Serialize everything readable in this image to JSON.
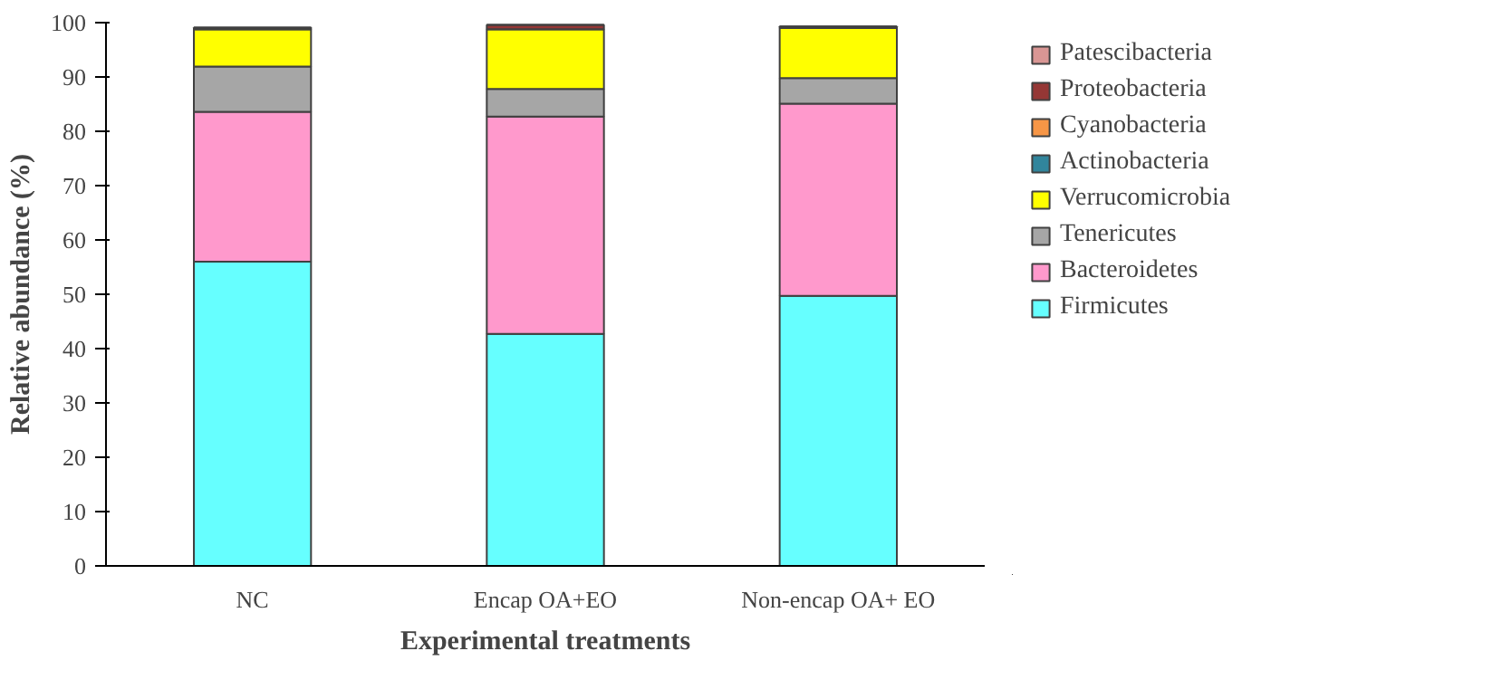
{
  "chart_data": {
    "type": "bar",
    "stacked": true,
    "xlabel": "Experimental treatments",
    "ylabel": "Relative abundance (%)",
    "categories": [
      "NC",
      "Encap OA+EO",
      "Non-encap OA+ EO"
    ],
    "ylim": [
      0,
      100
    ],
    "yticks": [
      0,
      10,
      20,
      30,
      40,
      50,
      60,
      70,
      80,
      90,
      100
    ],
    "grid": false,
    "legend": "right",
    "series": [
      {
        "name": "Firmicutes",
        "color": "#66ffff",
        "values": [
          56,
          42.7,
          49.7
        ]
      },
      {
        "name": "Bacteroidetes",
        "color": "#ff99cc",
        "values": [
          27.6,
          40,
          35.4
        ]
      },
      {
        "name": "Tenericutes",
        "color": "#a6a6a6",
        "values": [
          8.3,
          5.1,
          4.7
        ]
      },
      {
        "name": "Verrucomicrobia",
        "color": "#ffff00",
        "values": [
          6.9,
          11,
          9.2
        ]
      },
      {
        "name": "Actinobacteria",
        "color": "#31859c",
        "values": [
          null,
          null,
          null
        ]
      },
      {
        "name": "Cyanobacteria",
        "color": "#f79646",
        "values": [
          null,
          null,
          null
        ]
      },
      {
        "name": "Proteobacteria",
        "color": "#953735",
        "values": [
          0.3,
          0.8,
          0.3
        ]
      },
      {
        "name": "Patescibacteria",
        "color": "#d99694",
        "values": [
          null,
          null,
          null
        ]
      }
    ]
  }
}
